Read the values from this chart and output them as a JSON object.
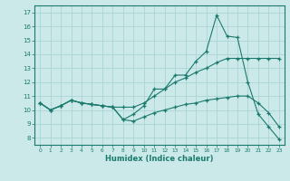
{
  "xlabel": "Humidex (Indice chaleur)",
  "background_color": "#cce9e9",
  "line_color": "#1a7a6e",
  "grid_color": "#aad4d4",
  "xlim": [
    -0.5,
    23.5
  ],
  "ylim": [
    7.5,
    17.5
  ],
  "xticks": [
    0,
    1,
    2,
    3,
    4,
    5,
    6,
    7,
    8,
    9,
    10,
    11,
    12,
    13,
    14,
    15,
    16,
    17,
    18,
    19,
    20,
    21,
    22,
    23
  ],
  "yticks": [
    8,
    9,
    10,
    11,
    12,
    13,
    14,
    15,
    16,
    17
  ],
  "series": [
    {
      "x": [
        0,
        1,
        2,
        3,
        4,
        5,
        6,
        7,
        8,
        9,
        10,
        11,
        12,
        13,
        14,
        15,
        16,
        17,
        18,
        19,
        20,
        21,
        22,
        23
      ],
      "y": [
        10.5,
        10.0,
        10.3,
        10.7,
        10.5,
        10.4,
        10.3,
        10.2,
        9.3,
        9.7,
        10.3,
        11.5,
        11.5,
        12.5,
        12.5,
        13.5,
        14.2,
        16.8,
        15.3,
        15.2,
        12.0,
        9.7,
        8.8,
        7.9
      ]
    },
    {
      "x": [
        0,
        1,
        2,
        3,
        4,
        5,
        6,
        7,
        8,
        9,
        10,
        11,
        12,
        13,
        14,
        15,
        16,
        17,
        18,
        19,
        20,
        21,
        22,
        23
      ],
      "y": [
        10.5,
        10.0,
        10.3,
        10.7,
        10.5,
        10.4,
        10.3,
        10.2,
        10.2,
        10.2,
        10.5,
        11.0,
        11.5,
        12.0,
        12.3,
        12.7,
        13.0,
        13.4,
        13.7,
        13.7,
        13.7,
        13.7,
        13.7,
        13.7
      ]
    },
    {
      "x": [
        0,
        1,
        2,
        3,
        4,
        5,
        6,
        7,
        8,
        9,
        10,
        11,
        12,
        13,
        14,
        15,
        16,
        17,
        18,
        19,
        20,
        21,
        22,
        23
      ],
      "y": [
        10.5,
        10.0,
        10.3,
        10.7,
        10.5,
        10.4,
        10.3,
        10.2,
        9.3,
        9.2,
        9.5,
        9.8,
        10.0,
        10.2,
        10.4,
        10.5,
        10.7,
        10.8,
        10.9,
        11.0,
        11.0,
        10.5,
        9.8,
        8.8
      ]
    }
  ]
}
